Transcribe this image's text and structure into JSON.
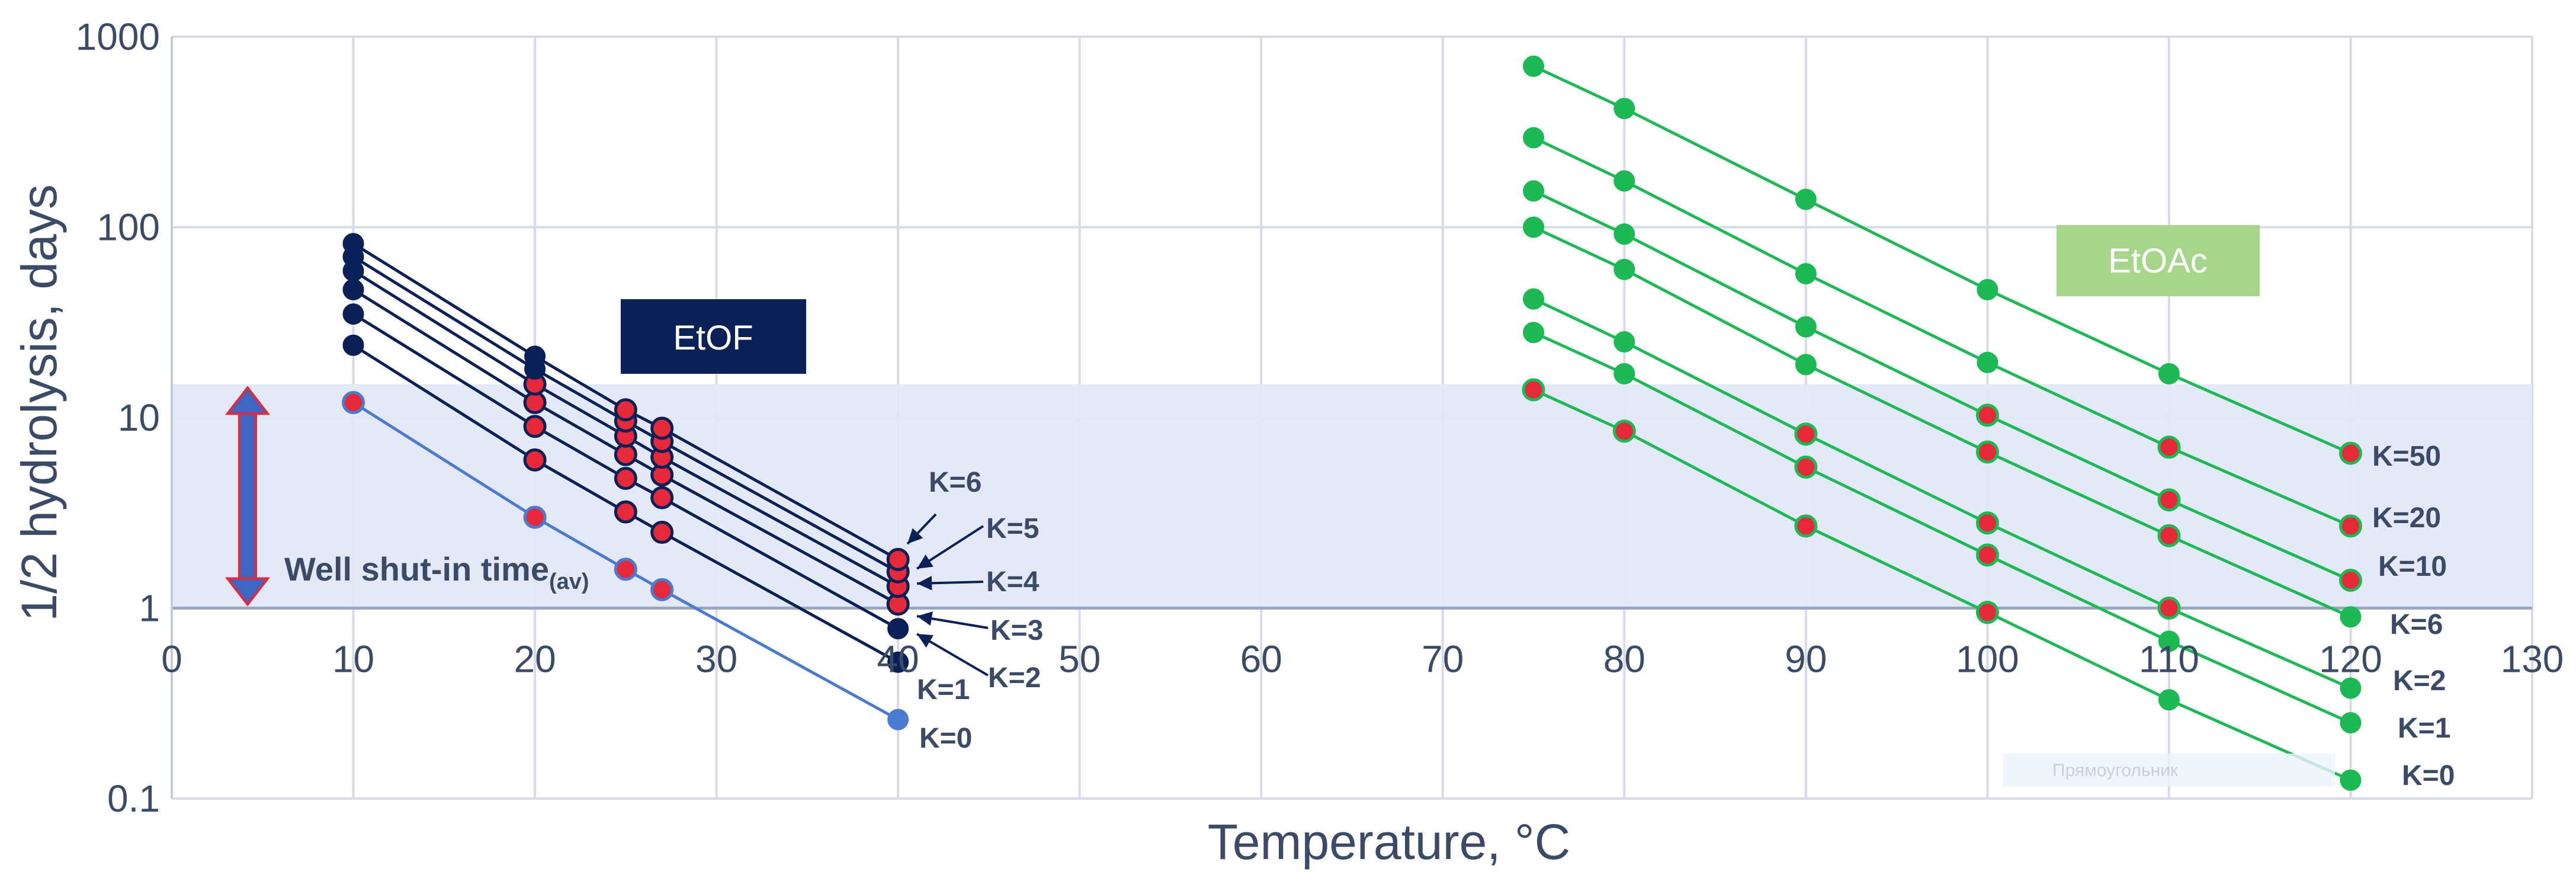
{
  "chart_data": {
    "type": "line",
    "xlabel": "Temperature, °C",
    "ylabel": "1/2 hydrolysis, days",
    "xlim": [
      0,
      130
    ],
    "ylim": [
      0.1,
      1000
    ],
    "yscale": "log",
    "xticks": [
      "0",
      "10",
      "20",
      "30",
      "40",
      "50",
      "60",
      "70",
      "80",
      "90",
      "100",
      "110",
      "120",
      "130"
    ],
    "yticks": [
      "0.1",
      "1",
      "10",
      "100",
      "1000"
    ],
    "band": {
      "low": 1,
      "high": 15,
      "label_main": "Well shut-in time",
      "label_sub": "(av)"
    },
    "groups": [
      {
        "name": "EtOF",
        "color": "#0b2056",
        "x": [
          10,
          20,
          25,
          27,
          40
        ],
        "series": [
          {
            "name": "K=0",
            "values": [
              12,
              3.0,
              1.6,
              1.25,
              0.26
            ]
          },
          {
            "name": "K=1",
            "values": [
              24,
              6.0,
              3.2,
              2.5,
              0.52
            ]
          },
          {
            "name": "K=2",
            "values": [
              35,
              9.0,
              4.8,
              3.8,
              0.78
            ]
          },
          {
            "name": "K=3",
            "values": [
              47,
              12,
              6.4,
              5.0,
              1.05
            ]
          },
          {
            "name": "K=4",
            "values": [
              59,
              15,
              8.0,
              6.2,
              1.3
            ]
          },
          {
            "name": "K=5",
            "values": [
              70,
              18,
              9.6,
              7.5,
              1.55
            ]
          },
          {
            "name": "K=6",
            "values": [
              82,
              21,
              11,
              8.8,
              1.8
            ]
          }
        ]
      },
      {
        "name": "EtOAc",
        "color": "#1db954",
        "x": [
          75,
          80,
          90,
          100,
          110,
          120
        ],
        "series": [
          {
            "name": "K=0",
            "values": [
              14,
              8.5,
              2.7,
              0.95,
              0.33,
              0.125
            ]
          },
          {
            "name": "K=1",
            "values": [
              28,
              17,
              5.5,
              1.9,
              0.67,
              0.25
            ]
          },
          {
            "name": "K=2",
            "values": [
              42,
              25,
              8.2,
              2.8,
              1.0,
              0.38
            ]
          },
          {
            "name": "K=6",
            "values": [
              100,
              60,
              19,
              6.6,
              2.4,
              0.9
            ]
          },
          {
            "name": "K=10",
            "values": [
              155,
              92,
              30,
              10.3,
              3.7,
              1.4
            ]
          },
          {
            "name": "K=20",
            "values": [
              295,
              175,
              57,
              19.5,
              7.0,
              2.7
            ]
          },
          {
            "name": "K=50",
            "values": [
              700,
              420,
              140,
              47,
              17,
              6.5
            ]
          }
        ]
      }
    ],
    "annotations": [
      "EtOF",
      "EtOAc",
      "Прямоугольник"
    ]
  },
  "colors": {
    "etof_line": "#0b2056",
    "etof_k0_line": "#4a7bd0",
    "etoac_line": "#1db954",
    "red_marker": "#e5283a",
    "band": "#e3e8f7",
    "etof_box": "#0b2056",
    "etoac_box": "#a8d58c",
    "arrow": "#e5283a"
  }
}
